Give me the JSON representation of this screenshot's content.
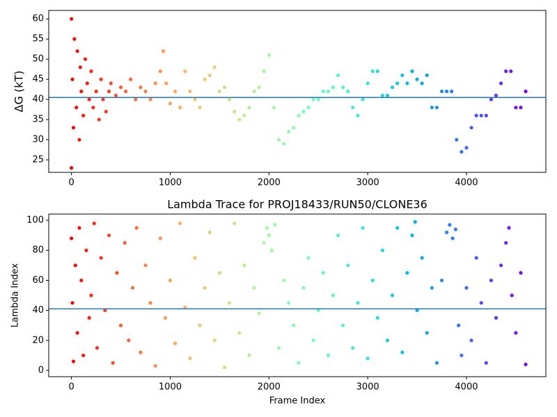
{
  "chart_data": [
    {
      "type": "scatter",
      "ylabel": "ΔG (kT)",
      "colormap": "rainbow_r",
      "hline": 40.5,
      "hline_color": "#1f77b4",
      "xlim": [
        -230,
        4804
      ],
      "ylim": [
        21.9,
        62.1
      ],
      "xticks": [
        0,
        1000,
        2000,
        3000,
        4000
      ],
      "yticks": [
        25,
        30,
        35,
        40,
        45,
        50,
        55,
        60
      ],
      "x": [
        0,
        0,
        10,
        20,
        30,
        50,
        60,
        80,
        90,
        100,
        120,
        140,
        160,
        180,
        200,
        220,
        250,
        280,
        300,
        320,
        350,
        380,
        400,
        450,
        500,
        550,
        600,
        650,
        700,
        750,
        800,
        850,
        900,
        930,
        960,
        1000,
        1050,
        1100,
        1150,
        1200,
        1250,
        1300,
        1350,
        1400,
        1450,
        1500,
        1550,
        1600,
        1650,
        1700,
        1750,
        1800,
        1850,
        1900,
        1950,
        2000,
        2050,
        2100,
        2150,
        2200,
        2250,
        2300,
        2350,
        2400,
        2450,
        2500,
        2550,
        2600,
        2650,
        2700,
        2750,
        2800,
        2850,
        2900,
        2950,
        3000,
        3050,
        3100,
        3150,
        3200,
        3250,
        3300,
        3350,
        3400,
        3450,
        3500,
        3550,
        3600,
        3650,
        3700,
        3750,
        3800,
        3850,
        3900,
        3950,
        4000,
        4050,
        4100,
        4150,
        4200,
        4250,
        4300,
        4350,
        4400,
        4450,
        4500,
        4550,
        4600
      ],
      "y": [
        60,
        23,
        45,
        33,
        55,
        38,
        52,
        30,
        48,
        42,
        36,
        50,
        44,
        40,
        47,
        38,
        42,
        35,
        45,
        40,
        37,
        42,
        44,
        41,
        43,
        42,
        45,
        40,
        43,
        42,
        40,
        44,
        47,
        52,
        44,
        39,
        42,
        38,
        47,
        42,
        40,
        38,
        45,
        46,
        48,
        42,
        43,
        40,
        37,
        35,
        36,
        38,
        42,
        43,
        47,
        51,
        38,
        30,
        29,
        32,
        33,
        36,
        37,
        38,
        40,
        40,
        42,
        42,
        43,
        46,
        43,
        42,
        38,
        36,
        40,
        44,
        47,
        47,
        41,
        41,
        43,
        44,
        46,
        44,
        47,
        45,
        44,
        46,
        38,
        38,
        42,
        42,
        42,
        30,
        27,
        28,
        33,
        36,
        36,
        36,
        40,
        41,
        44,
        47,
        47,
        38,
        38,
        42
      ]
    },
    {
      "type": "scatter",
      "title": "Lambda Trace for PROJ18433/RUN50/CLONE36",
      "xlabel": "Frame Index",
      "ylabel": "Lambda Index",
      "colormap": "rainbow_r",
      "hline": 41,
      "hline_color": "#1f77b4",
      "xlim": [
        -230,
        4804
      ],
      "ylim": [
        -4.2,
        104.2
      ],
      "xticks": [
        0,
        1000,
        2000,
        3000,
        4000
      ],
      "yticks": [
        0,
        20,
        40,
        60,
        80,
        100
      ],
      "x": [
        0,
        10,
        20,
        40,
        60,
        80,
        100,
        120,
        150,
        180,
        200,
        230,
        260,
        300,
        340,
        380,
        420,
        460,
        500,
        540,
        580,
        620,
        660,
        700,
        750,
        800,
        850,
        900,
        950,
        1000,
        1050,
        1100,
        1150,
        1200,
        1250,
        1300,
        1350,
        1400,
        1450,
        1500,
        1550,
        1600,
        1650,
        1700,
        1750,
        1800,
        1850,
        1900,
        1950,
        1980,
        2000,
        2030,
        2060,
        2100,
        2150,
        2200,
        2250,
        2300,
        2350,
        2400,
        2450,
        2500,
        2550,
        2600,
        2650,
        2700,
        2750,
        2800,
        2850,
        2900,
        2950,
        3000,
        3050,
        3100,
        3150,
        3200,
        3250,
        3300,
        3350,
        3400,
        3450,
        3480,
        3500,
        3550,
        3600,
        3650,
        3700,
        3750,
        3800,
        3830,
        3860,
        3890,
        3920,
        3950,
        4000,
        4050,
        4100,
        4150,
        4200,
        4250,
        4300,
        4350,
        4400,
        4430,
        4460,
        4500,
        4550,
        4600
      ],
      "y": [
        88,
        45,
        6,
        70,
        25,
        95,
        60,
        10,
        80,
        35,
        50,
        98,
        15,
        75,
        40,
        90,
        5,
        65,
        30,
        85,
        20,
        55,
        95,
        12,
        70,
        45,
        3,
        88,
        35,
        60,
        18,
        98,
        42,
        8,
        75,
        30,
        55,
        92,
        20,
        65,
        2,
        45,
        98,
        25,
        70,
        10,
        55,
        38,
        85,
        95,
        90,
        80,
        97,
        15,
        60,
        45,
        30,
        5,
        55,
        75,
        20,
        40,
        65,
        10,
        50,
        90,
        30,
        70,
        15,
        45,
        95,
        8,
        60,
        35,
        80,
        20,
        50,
        95,
        12,
        65,
        90,
        99,
        40,
        75,
        25,
        55,
        5,
        60,
        92,
        97,
        88,
        94,
        30,
        10,
        55,
        20,
        75,
        45,
        5,
        60,
        35,
        70,
        85,
        95,
        50,
        25,
        65,
        4
      ]
    }
  ]
}
